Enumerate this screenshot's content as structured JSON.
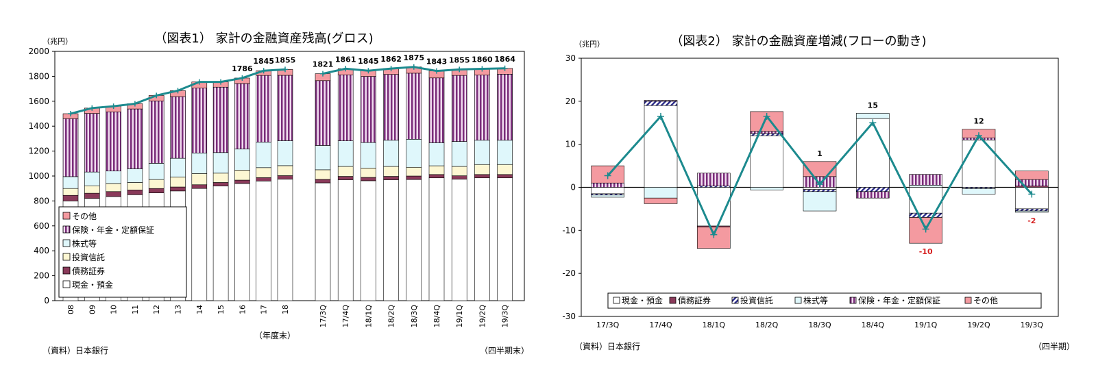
{
  "colors": {
    "background": "#ffffff",
    "cash": "#ffffff",
    "bonds": "#8a3a5a",
    "trust": "#fdf7d3",
    "stocks": "#dff7fb",
    "insurance": "#7a2d7a",
    "other": "#f49aa0",
    "line": "#1c8a8e",
    "negative_label": "#d62020"
  },
  "chart_data": [
    {
      "type": "bar",
      "stacked": true,
      "title": "（図表1） 家計の金融資産残高(グロス)",
      "ylabel": "（兆円）",
      "ylim": [
        0,
        2000
      ],
      "yticks": [
        "0",
        "200",
        "400",
        "600",
        "800",
        "1000",
        "1200",
        "1400",
        "1600",
        "1800",
        "2000"
      ],
      "legend": [
        "その他",
        "保険・年金・定額保証",
        "株式等",
        "投資信託",
        "債務証券",
        "現金・預金"
      ],
      "legend_placement": "inside-bottom-left",
      "group_label_annual": "（年度末）",
      "group_label_quarterly": "（四半期末）",
      "source": "（資料）日本銀行",
      "groups": [
        {
          "categories": [
            "08",
            "09",
            "10",
            "11",
            "12",
            "13",
            "14",
            "15",
            "16",
            "17",
            "18"
          ],
          "series": [
            {
              "name": "現金・預金",
              "values": [
                800,
                820,
                835,
                850,
                865,
                880,
                900,
                920,
                940,
                960,
                975
              ]
            },
            {
              "name": "債務証券",
              "values": [
                45,
                42,
                40,
                38,
                35,
                32,
                30,
                28,
                27,
                27,
                28
              ]
            },
            {
              "name": "投資信託",
              "values": [
                55,
                60,
                65,
                60,
                72,
                80,
                90,
                75,
                80,
                80,
                80
              ]
            },
            {
              "name": "株式等",
              "values": [
                95,
                110,
                100,
                110,
                130,
                150,
                165,
                165,
                170,
                205,
                200
              ]
            },
            {
              "name": "保険・年金・定額保証",
              "values": [
                465,
                470,
                475,
                480,
                500,
                495,
                520,
                525,
                525,
                535,
                525
              ]
            },
            {
              "name": "その他",
              "values": [
                40,
                43,
                45,
                42,
                44,
                48,
                50,
                42,
                44,
                38,
                47
              ]
            }
          ],
          "line": [
            1500,
            1545,
            1560,
            1580,
            1646,
            1685,
            1755,
            1755,
            1786,
            1845,
            1855
          ],
          "data_labels": [
            {
              "index": 8,
              "text": "1786"
            },
            {
              "index": 9,
              "text": "1845"
            },
            {
              "index": 10,
              "text": "1855"
            }
          ]
        },
        {
          "categories": [
            "17/3Q",
            "17/4Q",
            "18/1Q",
            "18/2Q",
            "18/3Q",
            "18/4Q",
            "19/1Q",
            "19/2Q",
            "19/3Q"
          ],
          "series": [
            {
              "name": "現金・預金",
              "values": [
                945,
                970,
                962,
                970,
                972,
                985,
                975,
                985,
                985
              ]
            },
            {
              "name": "債務証券",
              "values": [
                28,
                27,
                27,
                27,
                28,
                27,
                27,
                27,
                27
              ]
            },
            {
              "name": "投資信託",
              "values": [
                77,
                80,
                75,
                80,
                70,
                70,
                75,
                80,
                80
              ]
            },
            {
              "name": "株式等",
              "values": [
                195,
                205,
                205,
                210,
                225,
                185,
                200,
                195,
                195
              ]
            },
            {
              "name": "保険・年金・定額保証",
              "values": [
                520,
                530,
                530,
                528,
                530,
                520,
                530,
                523,
                530
              ]
            },
            {
              "name": "その他",
              "values": [
                56,
                49,
                46,
                47,
                50,
                56,
                48,
                50,
                47
              ]
            }
          ],
          "line": [
            1821,
            1861,
            1845,
            1862,
            1875,
            1843,
            1855,
            1860,
            1864
          ],
          "data_labels": [
            {
              "index": 0,
              "text": "1821"
            },
            {
              "index": 1,
              "text": "1861"
            },
            {
              "index": 2,
              "text": "1845"
            },
            {
              "index": 3,
              "text": "1862"
            },
            {
              "index": 4,
              "text": "1875"
            },
            {
              "index": 5,
              "text": "1843"
            },
            {
              "index": 6,
              "text": "1855"
            },
            {
              "index": 7,
              "text": "1860"
            },
            {
              "index": 8,
              "text": "1864"
            }
          ]
        }
      ]
    },
    {
      "type": "bar",
      "stacked": true,
      "title": "（図表2） 家計の金融資産増減(フローの動き)",
      "ylabel": "（兆円）",
      "ylim": [
        -30,
        30
      ],
      "yticks": [
        "-30",
        "-20",
        "-10",
        "0",
        "10",
        "20",
        "30"
      ],
      "x_unit_label": "（四半期）",
      "source": "（資料）日本銀行",
      "legend": [
        "現金・預金",
        "債務証券",
        "投資信託",
        "株式等",
        "保険・年金・定額保証",
        "その他"
      ],
      "legend_placement": "inside-bottom",
      "categories": [
        "17/3Q",
        "17/4Q",
        "18/1Q",
        "18/2Q",
        "18/3Q",
        "18/4Q",
        "19/1Q",
        "19/2Q",
        "19/3Q"
      ],
      "series": [
        {
          "name": "現金・預金",
          "values": [
            -1.5,
            19,
            -9,
            12,
            -0.5,
            16,
            -6,
            11,
            -5
          ]
        },
        {
          "name": "債務証券",
          "values": [
            0,
            0,
            -0.2,
            0,
            0,
            0,
            0,
            0,
            0.3
          ]
        },
        {
          "name": "投資信託",
          "values": [
            -0.3,
            1,
            0.3,
            0.5,
            -0.5,
            -1,
            -1,
            -0.3,
            -0.5
          ]
        },
        {
          "name": "株式等",
          "values": [
            -0.5,
            -2.5,
            0,
            -0.6,
            -4.5,
            1.2,
            0.5,
            -1.3,
            -0.3
          ]
        },
        {
          "name": "保険・年金・定額保証",
          "values": [
            1,
            0.2,
            3,
            0.5,
            2.5,
            -1.5,
            2.5,
            0.5,
            1.5
          ]
        },
        {
          "name": "その他",
          "values": [
            4,
            -1.3,
            -5,
            4.6,
            3.5,
            0,
            -6,
            2,
            2
          ]
        }
      ],
      "line": [
        2.7,
        16.5,
        -11,
        16.5,
        0.7,
        15,
        -9.7,
        12,
        -1.6
      ],
      "data_labels": [
        {
          "index": 4,
          "text": "1",
          "negative": false
        },
        {
          "index": 5,
          "text": "15",
          "negative": false
        },
        {
          "index": 6,
          "text": "-10",
          "negative": true
        },
        {
          "index": 7,
          "text": "12",
          "negative": false
        },
        {
          "index": 8,
          "text": "-2",
          "negative": true
        }
      ]
    }
  ]
}
